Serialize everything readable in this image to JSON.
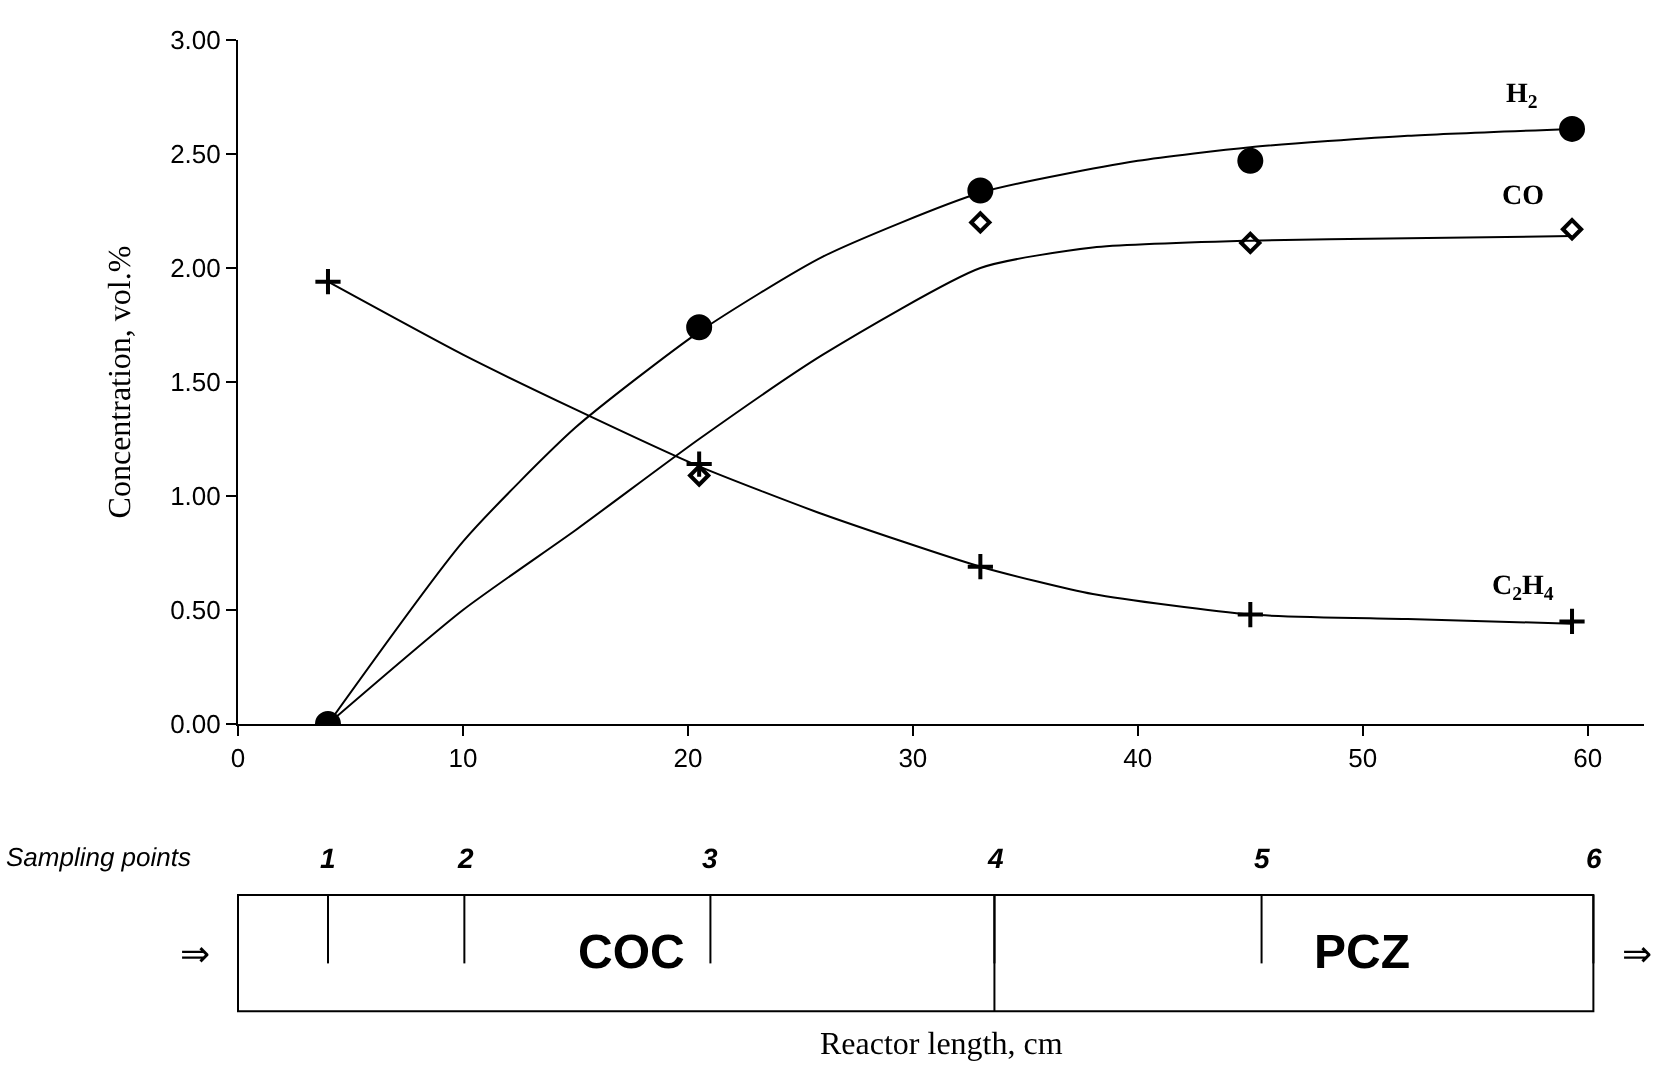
{
  "chart_data": {
    "type": "scatter",
    "ylabel": "Concentration, vol.%",
    "xlim": [
      0,
      62.5
    ],
    "xticks": [
      0,
      10,
      20,
      30,
      40,
      50,
      60
    ],
    "ylim": [
      0,
      3
    ],
    "yticks": [
      {
        "value": 0,
        "label": "0.00"
      },
      {
        "value": 0.5,
        "label": "0.50"
      },
      {
        "value": 1,
        "label": "1.00"
      },
      {
        "value": 1.5,
        "label": "1.50"
      },
      {
        "value": 2,
        "label": "2.00"
      },
      {
        "value": 2.5,
        "label": "2.50"
      },
      {
        "value": 3,
        "label": "3.00"
      }
    ],
    "legend": false,
    "series": [
      {
        "name": "H$_{2}$",
        "marker": "circle",
        "color": "#000000",
        "x": [
          4,
          20.5,
          33,
          45,
          59.3
        ],
        "values": [
          0,
          1.74,
          2.34,
          2.47,
          2.61
        ]
      },
      {
        "name": "CO",
        "marker": "diamond",
        "color": "#000000",
        "x": [
          20.5,
          33,
          45,
          59.3
        ],
        "values": [
          1.09,
          2.2,
          2.11,
          2.17
        ]
      },
      {
        "name": "C$_{2}$H$_{4}$",
        "marker": "cross",
        "color": "#000000",
        "x": [
          4,
          20.5,
          33,
          45,
          59.3
        ],
        "values": [
          1.94,
          1.14,
          0.69,
          0.48,
          0.45
        ]
      },
      {
        "type": "line",
        "marker": "none",
        "line_style": "solid",
        "color": "#000000",
        "x": [
          4,
          10,
          15,
          20.5,
          26,
          33,
          40,
          45,
          52,
          59.3
        ],
        "values": [
          0,
          0.8,
          1.3,
          1.72,
          2.05,
          2.33,
          2.47,
          2.53,
          2.58,
          2.61
        ]
      },
      {
        "type": "line",
        "marker": "none",
        "line_style": "solid",
        "color": "#000000",
        "x": [
          4,
          10,
          15,
          20.5,
          26,
          33,
          38,
          45,
          52,
          59.3
        ],
        "values": [
          0,
          0.5,
          0.85,
          1.25,
          1.62,
          2.0,
          2.09,
          2.12,
          2.13,
          2.14
        ]
      },
      {
        "type": "line",
        "marker": "none",
        "line_style": "solid",
        "color": "#000000",
        "x": [
          4,
          10,
          15,
          20.5,
          26,
          33,
          38,
          45,
          52,
          59.3
        ],
        "values": [
          1.94,
          1.62,
          1.38,
          1.13,
          0.92,
          0.69,
          0.57,
          0.48,
          0.46,
          0.44
        ]
      }
    ],
    "annotations": [
      "Sampling points",
      "1",
      "2",
      "3",
      "4",
      "5",
      "6",
      "COC",
      "PCZ",
      "⇒",
      "⇒",
      "Reactor length, cm"
    ]
  }
}
